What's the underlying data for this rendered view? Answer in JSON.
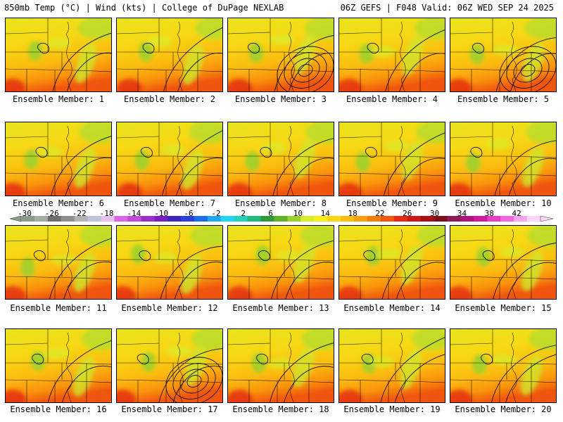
{
  "header": {
    "left": "850mb Temp (°C) | Wind (kts) | College of DuPage NEXLAB",
    "right": "06Z GEFS | F048 Valid: 06Z WED SEP 24 2025"
  },
  "panel_label_prefix": "Ensemble Member: ",
  "members": [
    {
      "label": "Ensemble Member: 1",
      "number": 1
    },
    {
      "label": "Ensemble Member: 2",
      "number": 2
    },
    {
      "label": "Ensemble Member: 3",
      "number": 3
    },
    {
      "label": "Ensemble Member: 4",
      "number": 4
    },
    {
      "label": "Ensemble Member: 5",
      "number": 5
    },
    {
      "label": "Ensemble Member: 6",
      "number": 6
    },
    {
      "label": "Ensemble Member: 7",
      "number": 7
    },
    {
      "label": "Ensemble Member: 8",
      "number": 8
    },
    {
      "label": "Ensemble Member: 9",
      "number": 9
    },
    {
      "label": "Ensemble Member: 10",
      "number": 10
    },
    {
      "label": "Ensemble Member: 11",
      "number": 11
    },
    {
      "label": "Ensemble Member: 12",
      "number": 12
    },
    {
      "label": "Ensemble Member: 13",
      "number": 13
    },
    {
      "label": "Ensemble Member: 14",
      "number": 14
    },
    {
      "label": "Ensemble Member: 15",
      "number": 15
    },
    {
      "label": "Ensemble Member: 16",
      "number": 16
    },
    {
      "label": "Ensemble Member: 17",
      "number": 17
    },
    {
      "label": "Ensemble Member: 18",
      "number": 18
    },
    {
      "label": "Ensemble Member: 19",
      "number": 19
    },
    {
      "label": "Ensemble Member: 20",
      "number": 20
    }
  ],
  "colorbar": {
    "labels": [
      "-30",
      "-26",
      "-22",
      "-18",
      "-14",
      "-10",
      "-6",
      "-2",
      "2",
      "6",
      "10",
      "14",
      "18",
      "22",
      "26",
      "30",
      "34",
      "38",
      "42"
    ],
    "colors": [
      "#8a9b8a",
      "#a3aea3",
      "#6e6e6e",
      "#8f8f8f",
      "#b3b3b3",
      "#bcc6d8",
      "#e6c3ec",
      "#d866e6",
      "#c14bd6",
      "#9b30c8",
      "#7a1fbf",
      "#3e27b8",
      "#2a3fdc",
      "#1d6de8",
      "#1fa8f0",
      "#22d5f2",
      "#27d0b8",
      "#23b87a",
      "#2f9a38",
      "#62b32a",
      "#9cd02c",
      "#d8ec2a",
      "#f7ee1c",
      "#fbd613",
      "#fbbd10",
      "#fa9f0c",
      "#f67d0c",
      "#f0560e",
      "#e42a14",
      "#cf161a",
      "#a80f16",
      "#7e0f18",
      "#8d1a56",
      "#b0137a",
      "#d11b9a",
      "#e83cc2",
      "#f267de",
      "#f7a6ef",
      "#fcd7f8"
    ]
  },
  "colors": {
    "outline": "#000000",
    "background": "#ffffff"
  }
}
